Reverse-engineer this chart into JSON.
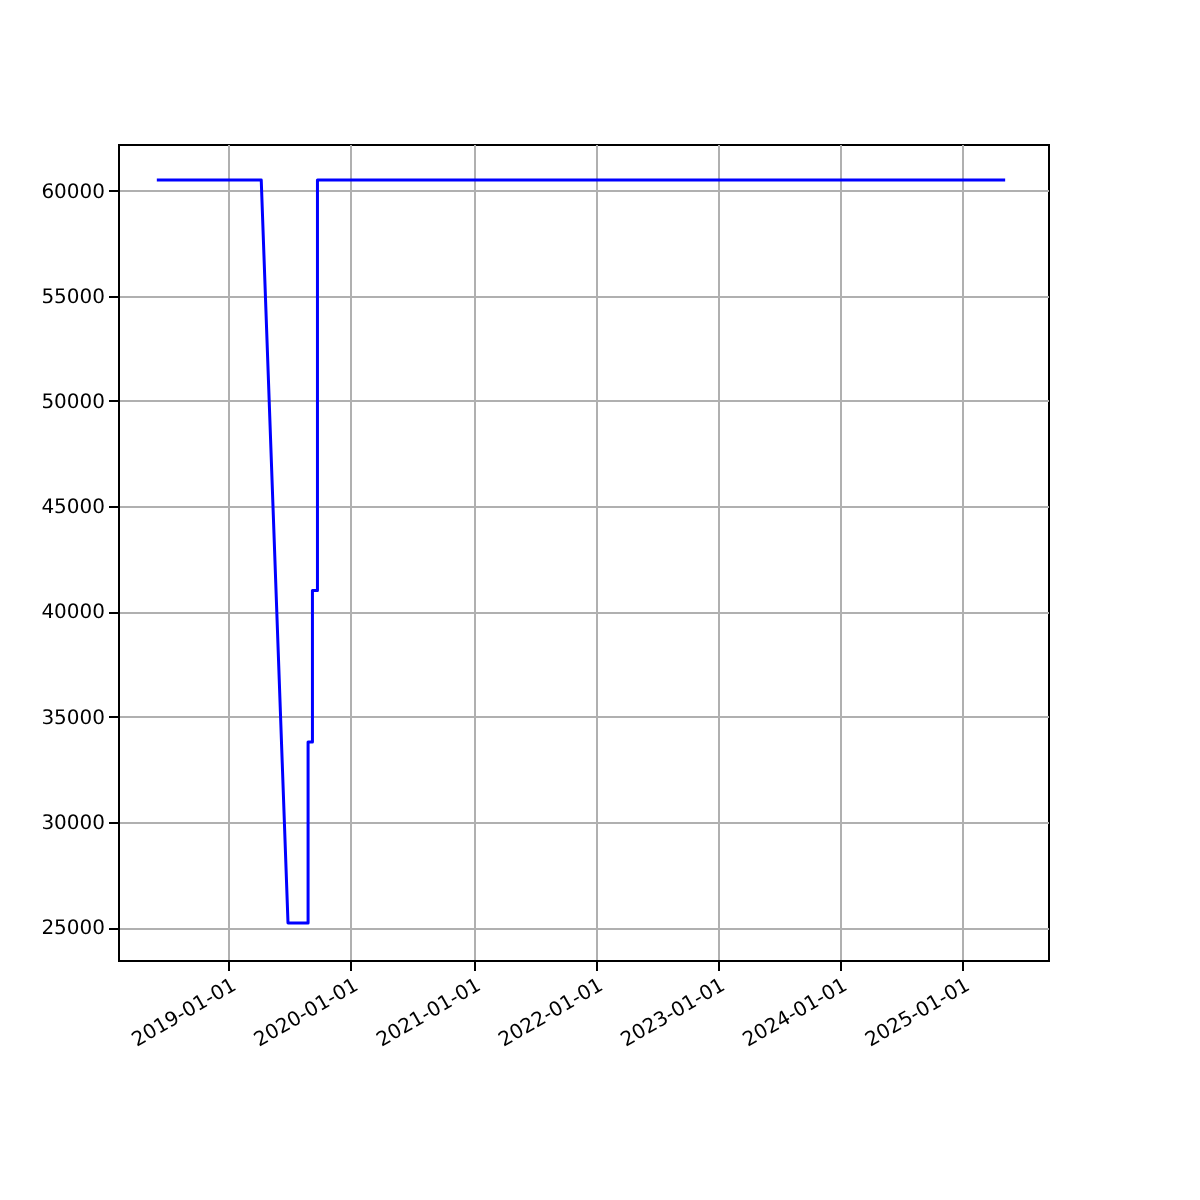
{
  "chart_data": {
    "type": "line",
    "x": [
      "2018-06-01",
      "2019-04-09",
      "2019-06-28",
      "2019-08-27",
      "2019-08-27",
      "2019-09-09",
      "2019-09-09",
      "2019-09-24",
      "2019-09-24",
      "2025-05-10"
    ],
    "series": [
      {
        "color": "#0000ff",
        "values": [
          60500,
          60500,
          25200,
          25200,
          33800,
          33800,
          41000,
          41000,
          60500,
          60500
        ]
      }
    ],
    "xlim": [
      "2018-02-05",
      "2025-09-15"
    ],
    "xticks": [
      "2019-01-01",
      "2020-01-01",
      "2021-01-01",
      "2022-01-01",
      "2023-01-01",
      "2024-01-01",
      "2025-01-01"
    ],
    "ylim": [
      23437,
      62212
    ],
    "yticks": [
      25000,
      30000,
      35000,
      40000,
      45000,
      50000,
      55000,
      60000
    ],
    "grid": true,
    "line_style": "solid",
    "marker": "none"
  }
}
